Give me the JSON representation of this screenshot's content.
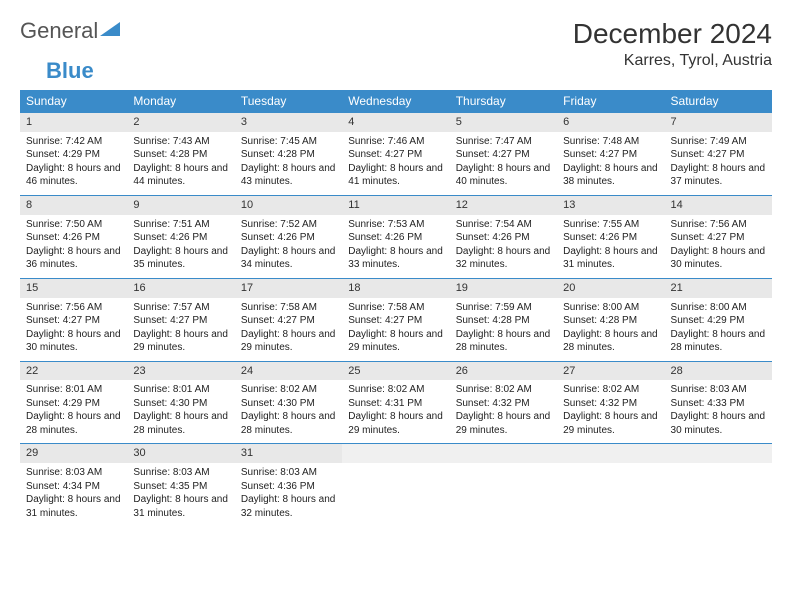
{
  "logo": {
    "word1": "General",
    "word2": "Blue"
  },
  "title": "December 2024",
  "location": "Karres, Tyrol, Austria",
  "colors": {
    "header_bg": "#3a8bc9",
    "header_fg": "#ffffff",
    "daynum_bg": "#e8e8e8",
    "row_border": "#3a8bc9",
    "text": "#222222",
    "logo_gray": "#555555",
    "logo_blue": "#3a8bc9"
  },
  "weekdays": [
    "Sunday",
    "Monday",
    "Tuesday",
    "Wednesday",
    "Thursday",
    "Friday",
    "Saturday"
  ],
  "weeks": [
    [
      {
        "n": "1",
        "sunrise": "7:42 AM",
        "sunset": "4:29 PM",
        "daylight": "8 hours and 46 minutes."
      },
      {
        "n": "2",
        "sunrise": "7:43 AM",
        "sunset": "4:28 PM",
        "daylight": "8 hours and 44 minutes."
      },
      {
        "n": "3",
        "sunrise": "7:45 AM",
        "sunset": "4:28 PM",
        "daylight": "8 hours and 43 minutes."
      },
      {
        "n": "4",
        "sunrise": "7:46 AM",
        "sunset": "4:27 PM",
        "daylight": "8 hours and 41 minutes."
      },
      {
        "n": "5",
        "sunrise": "7:47 AM",
        "sunset": "4:27 PM",
        "daylight": "8 hours and 40 minutes."
      },
      {
        "n": "6",
        "sunrise": "7:48 AM",
        "sunset": "4:27 PM",
        "daylight": "8 hours and 38 minutes."
      },
      {
        "n": "7",
        "sunrise": "7:49 AM",
        "sunset": "4:27 PM",
        "daylight": "8 hours and 37 minutes."
      }
    ],
    [
      {
        "n": "8",
        "sunrise": "7:50 AM",
        "sunset": "4:26 PM",
        "daylight": "8 hours and 36 minutes."
      },
      {
        "n": "9",
        "sunrise": "7:51 AM",
        "sunset": "4:26 PM",
        "daylight": "8 hours and 35 minutes."
      },
      {
        "n": "10",
        "sunrise": "7:52 AM",
        "sunset": "4:26 PM",
        "daylight": "8 hours and 34 minutes."
      },
      {
        "n": "11",
        "sunrise": "7:53 AM",
        "sunset": "4:26 PM",
        "daylight": "8 hours and 33 minutes."
      },
      {
        "n": "12",
        "sunrise": "7:54 AM",
        "sunset": "4:26 PM",
        "daylight": "8 hours and 32 minutes."
      },
      {
        "n": "13",
        "sunrise": "7:55 AM",
        "sunset": "4:26 PM",
        "daylight": "8 hours and 31 minutes."
      },
      {
        "n": "14",
        "sunrise": "7:56 AM",
        "sunset": "4:27 PM",
        "daylight": "8 hours and 30 minutes."
      }
    ],
    [
      {
        "n": "15",
        "sunrise": "7:56 AM",
        "sunset": "4:27 PM",
        "daylight": "8 hours and 30 minutes."
      },
      {
        "n": "16",
        "sunrise": "7:57 AM",
        "sunset": "4:27 PM",
        "daylight": "8 hours and 29 minutes."
      },
      {
        "n": "17",
        "sunrise": "7:58 AM",
        "sunset": "4:27 PM",
        "daylight": "8 hours and 29 minutes."
      },
      {
        "n": "18",
        "sunrise": "7:58 AM",
        "sunset": "4:27 PM",
        "daylight": "8 hours and 29 minutes."
      },
      {
        "n": "19",
        "sunrise": "7:59 AM",
        "sunset": "4:28 PM",
        "daylight": "8 hours and 28 minutes."
      },
      {
        "n": "20",
        "sunrise": "8:00 AM",
        "sunset": "4:28 PM",
        "daylight": "8 hours and 28 minutes."
      },
      {
        "n": "21",
        "sunrise": "8:00 AM",
        "sunset": "4:29 PM",
        "daylight": "8 hours and 28 minutes."
      }
    ],
    [
      {
        "n": "22",
        "sunrise": "8:01 AM",
        "sunset": "4:29 PM",
        "daylight": "8 hours and 28 minutes."
      },
      {
        "n": "23",
        "sunrise": "8:01 AM",
        "sunset": "4:30 PM",
        "daylight": "8 hours and 28 minutes."
      },
      {
        "n": "24",
        "sunrise": "8:02 AM",
        "sunset": "4:30 PM",
        "daylight": "8 hours and 28 minutes."
      },
      {
        "n": "25",
        "sunrise": "8:02 AM",
        "sunset": "4:31 PM",
        "daylight": "8 hours and 29 minutes."
      },
      {
        "n": "26",
        "sunrise": "8:02 AM",
        "sunset": "4:32 PM",
        "daylight": "8 hours and 29 minutes."
      },
      {
        "n": "27",
        "sunrise": "8:02 AM",
        "sunset": "4:32 PM",
        "daylight": "8 hours and 29 minutes."
      },
      {
        "n": "28",
        "sunrise": "8:03 AM",
        "sunset": "4:33 PM",
        "daylight": "8 hours and 30 minutes."
      }
    ],
    [
      {
        "n": "29",
        "sunrise": "8:03 AM",
        "sunset": "4:34 PM",
        "daylight": "8 hours and 31 minutes."
      },
      {
        "n": "30",
        "sunrise": "8:03 AM",
        "sunset": "4:35 PM",
        "daylight": "8 hours and 31 minutes."
      },
      {
        "n": "31",
        "sunrise": "8:03 AM",
        "sunset": "4:36 PM",
        "daylight": "8 hours and 32 minutes."
      },
      null,
      null,
      null,
      null
    ]
  ],
  "labels": {
    "sunrise": "Sunrise: ",
    "sunset": "Sunset: ",
    "daylight": "Daylight: "
  }
}
